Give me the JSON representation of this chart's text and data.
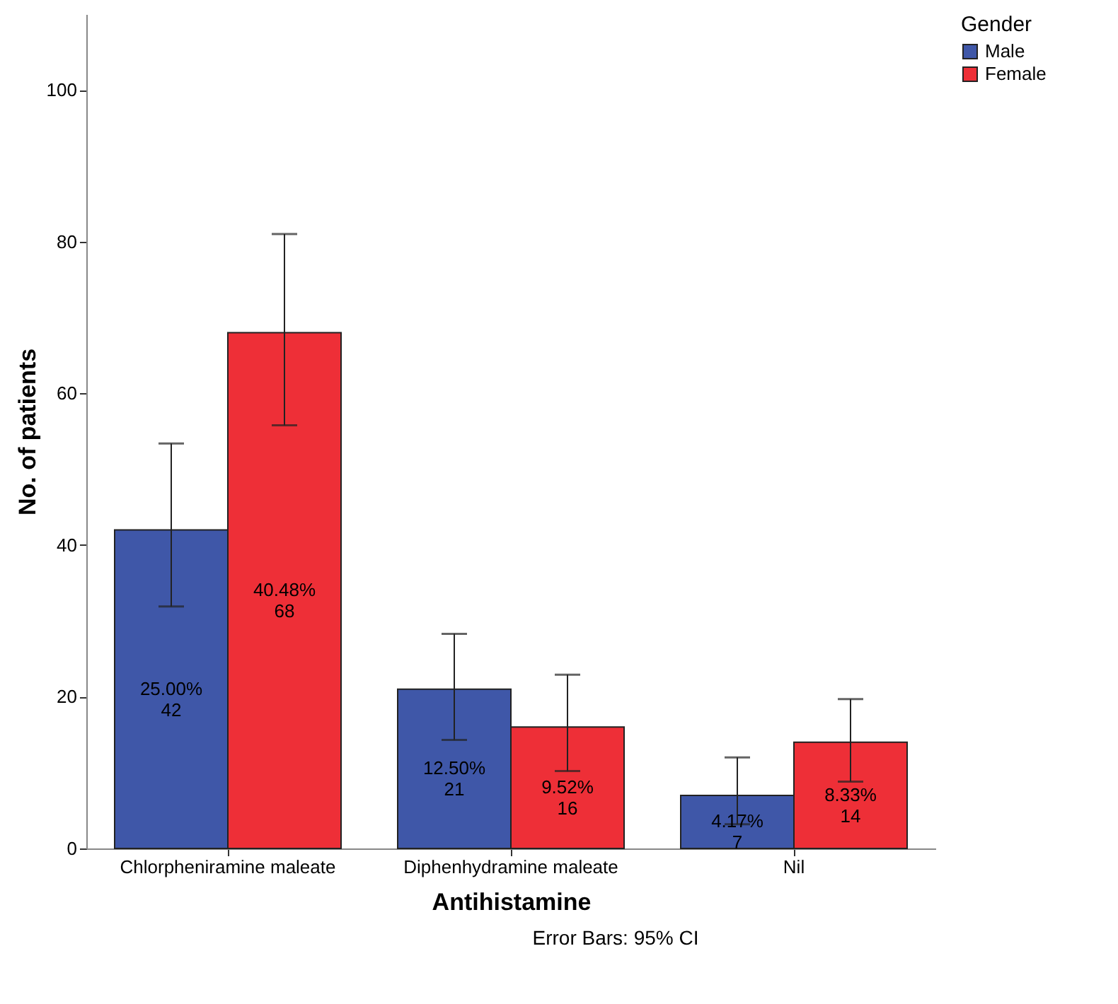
{
  "chart_data": {
    "type": "bar",
    "xlabel": "Antihistamine",
    "ylabel": "No. of patients",
    "legend_title": "Gender",
    "annotations": [
      "Error Bars: 95% CI"
    ],
    "categories": [
      "Chlorpheniramine maleate",
      "Diphenhydramine maleate",
      "Nil"
    ],
    "series": [
      {
        "name": "Male",
        "color": "#3f57a8",
        "values": [
          42,
          21,
          7
        ],
        "errors": [
          [
            31.9,
            53.4
          ],
          [
            14.3,
            28.3
          ],
          [
            3.2,
            12.0
          ]
        ],
        "value_labels": [
          "25.00%\n42",
          "12.50%\n21",
          "4.17%\n7"
        ]
      },
      {
        "name": "Female",
        "color": "#ee2f37",
        "values": [
          68,
          16,
          14
        ],
        "errors": [
          [
            55.8,
            81.0
          ],
          [
            10.2,
            22.9
          ],
          [
            8.8,
            19.7
          ]
        ],
        "value_labels": [
          "40.48%\n68",
          "9.52%\n16",
          "8.33%\n14"
        ]
      }
    ],
    "ylim": [
      0,
      110
    ],
    "yticks": [
      0,
      20,
      40,
      60,
      80,
      100
    ],
    "grid": false,
    "legend": "top right"
  }
}
